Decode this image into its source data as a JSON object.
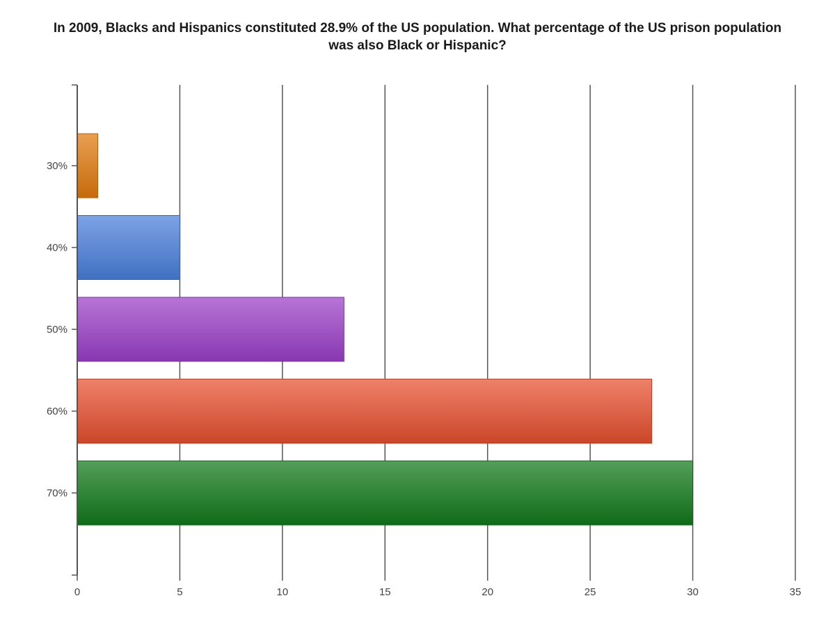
{
  "chart_data": {
    "type": "bar",
    "orientation": "horizontal",
    "title": "In 2009, Blacks and Hispanics constituted 28.9% of the US population. What percentage of the US prison population was also Black or Hispanic?",
    "xlabel": "",
    "ylabel": "",
    "categories": [
      "30%",
      "40%",
      "50%",
      "60%",
      "70%"
    ],
    "values": [
      1,
      5,
      13,
      28,
      30
    ],
    "colors": [
      "#e07a0e",
      "#4a7fdc",
      "#9b3fc8",
      "#e8502f",
      "#117a1a"
    ],
    "xlim": [
      0,
      35
    ],
    "xticks": [
      0,
      5,
      10,
      15,
      20,
      25,
      30,
      35
    ],
    "grid": true,
    "legend": "none"
  }
}
